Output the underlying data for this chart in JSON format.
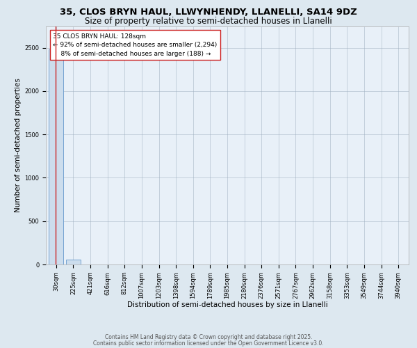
{
  "title1": "35, CLOS BRYN HAUL, LLWYNHENDY, LLANELLI, SA14 9DZ",
  "title2": "Size of property relative to semi-detached houses in Llanelli",
  "xlabel": "Distribution of semi-detached houses by size in Llanelli",
  "ylabel": "Number of semi-detached properties",
  "bin_labels": [
    "30sqm",
    "225sqm",
    "421sqm",
    "616sqm",
    "812sqm",
    "1007sqm",
    "1203sqm",
    "1398sqm",
    "1594sqm",
    "1789sqm",
    "1985sqm",
    "2180sqm",
    "2376sqm",
    "2571sqm",
    "2767sqm",
    "2962sqm",
    "3158sqm",
    "3353sqm",
    "3549sqm",
    "3744sqm",
    "3940sqm"
  ],
  "bar_values": [
    2482,
    60,
    0,
    0,
    0,
    0,
    0,
    0,
    0,
    0,
    0,
    0,
    0,
    0,
    0,
    0,
    0,
    0,
    0,
    0,
    0
  ],
  "bar_color": "#ccdded",
  "bar_edge_color": "#6699cc",
  "subject_line_color": "#cc2222",
  "annotation_title": "35 CLOS BRYN HAUL: 128sqm",
  "annotation_line1": "← 92% of semi-detached houses are smaller (2,294)",
  "annotation_line2": "8% of semi-detached houses are larger (188) →",
  "annotation_box_color": "#ffffff",
  "annotation_box_edge": "#cc2222",
  "ylim": [
    0,
    2750
  ],
  "yticks": [
    0,
    500,
    1000,
    1500,
    2000,
    2500
  ],
  "bg_color": "#dde8f0",
  "plot_bg_color": "#e8f0f8",
  "footer1": "Contains HM Land Registry data © Crown copyright and database right 2025.",
  "footer2": "Contains public sector information licensed under the Open Government Licence v3.0.",
  "title1_fontsize": 9.5,
  "title2_fontsize": 8.5,
  "axis_label_fontsize": 7.5,
  "tick_fontsize": 6.0,
  "annotation_fontsize": 6.5,
  "footer_fontsize": 5.5
}
